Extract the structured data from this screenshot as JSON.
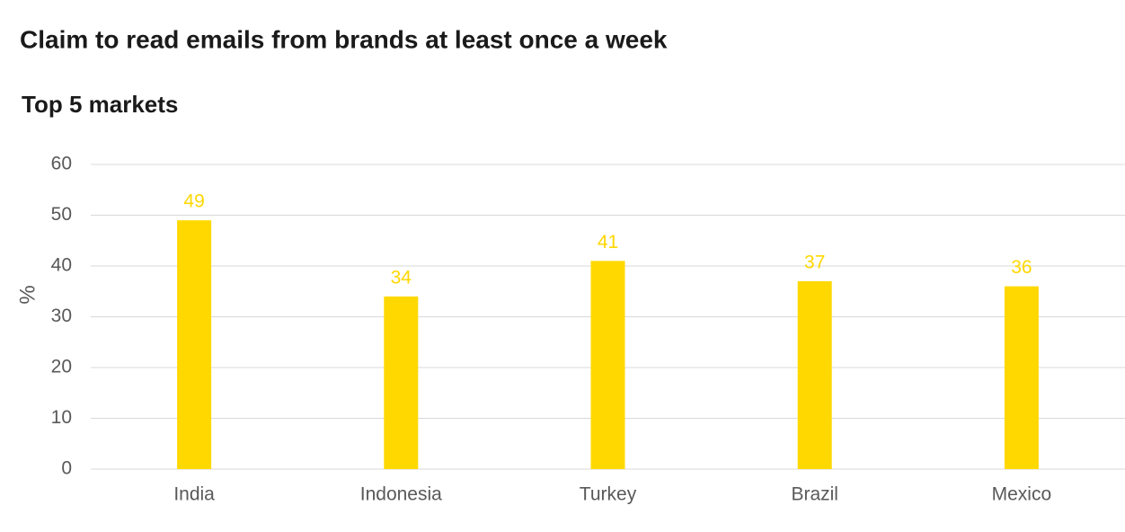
{
  "chart_data": {
    "type": "bar",
    "title": "Claim to read emails from brands at least once a week",
    "subtitle": "Top 5 markets",
    "y_label": "%",
    "categories": [
      "India",
      "Indonesia",
      "Turkey",
      "Brazil",
      "Mexico"
    ],
    "values": [
      49,
      34,
      41,
      37,
      36
    ],
    "color": "#ffd800",
    "ylim": [
      0,
      60
    ],
    "yticks": [
      0,
      10,
      20,
      30,
      40,
      50,
      60
    ],
    "grid": true
  }
}
